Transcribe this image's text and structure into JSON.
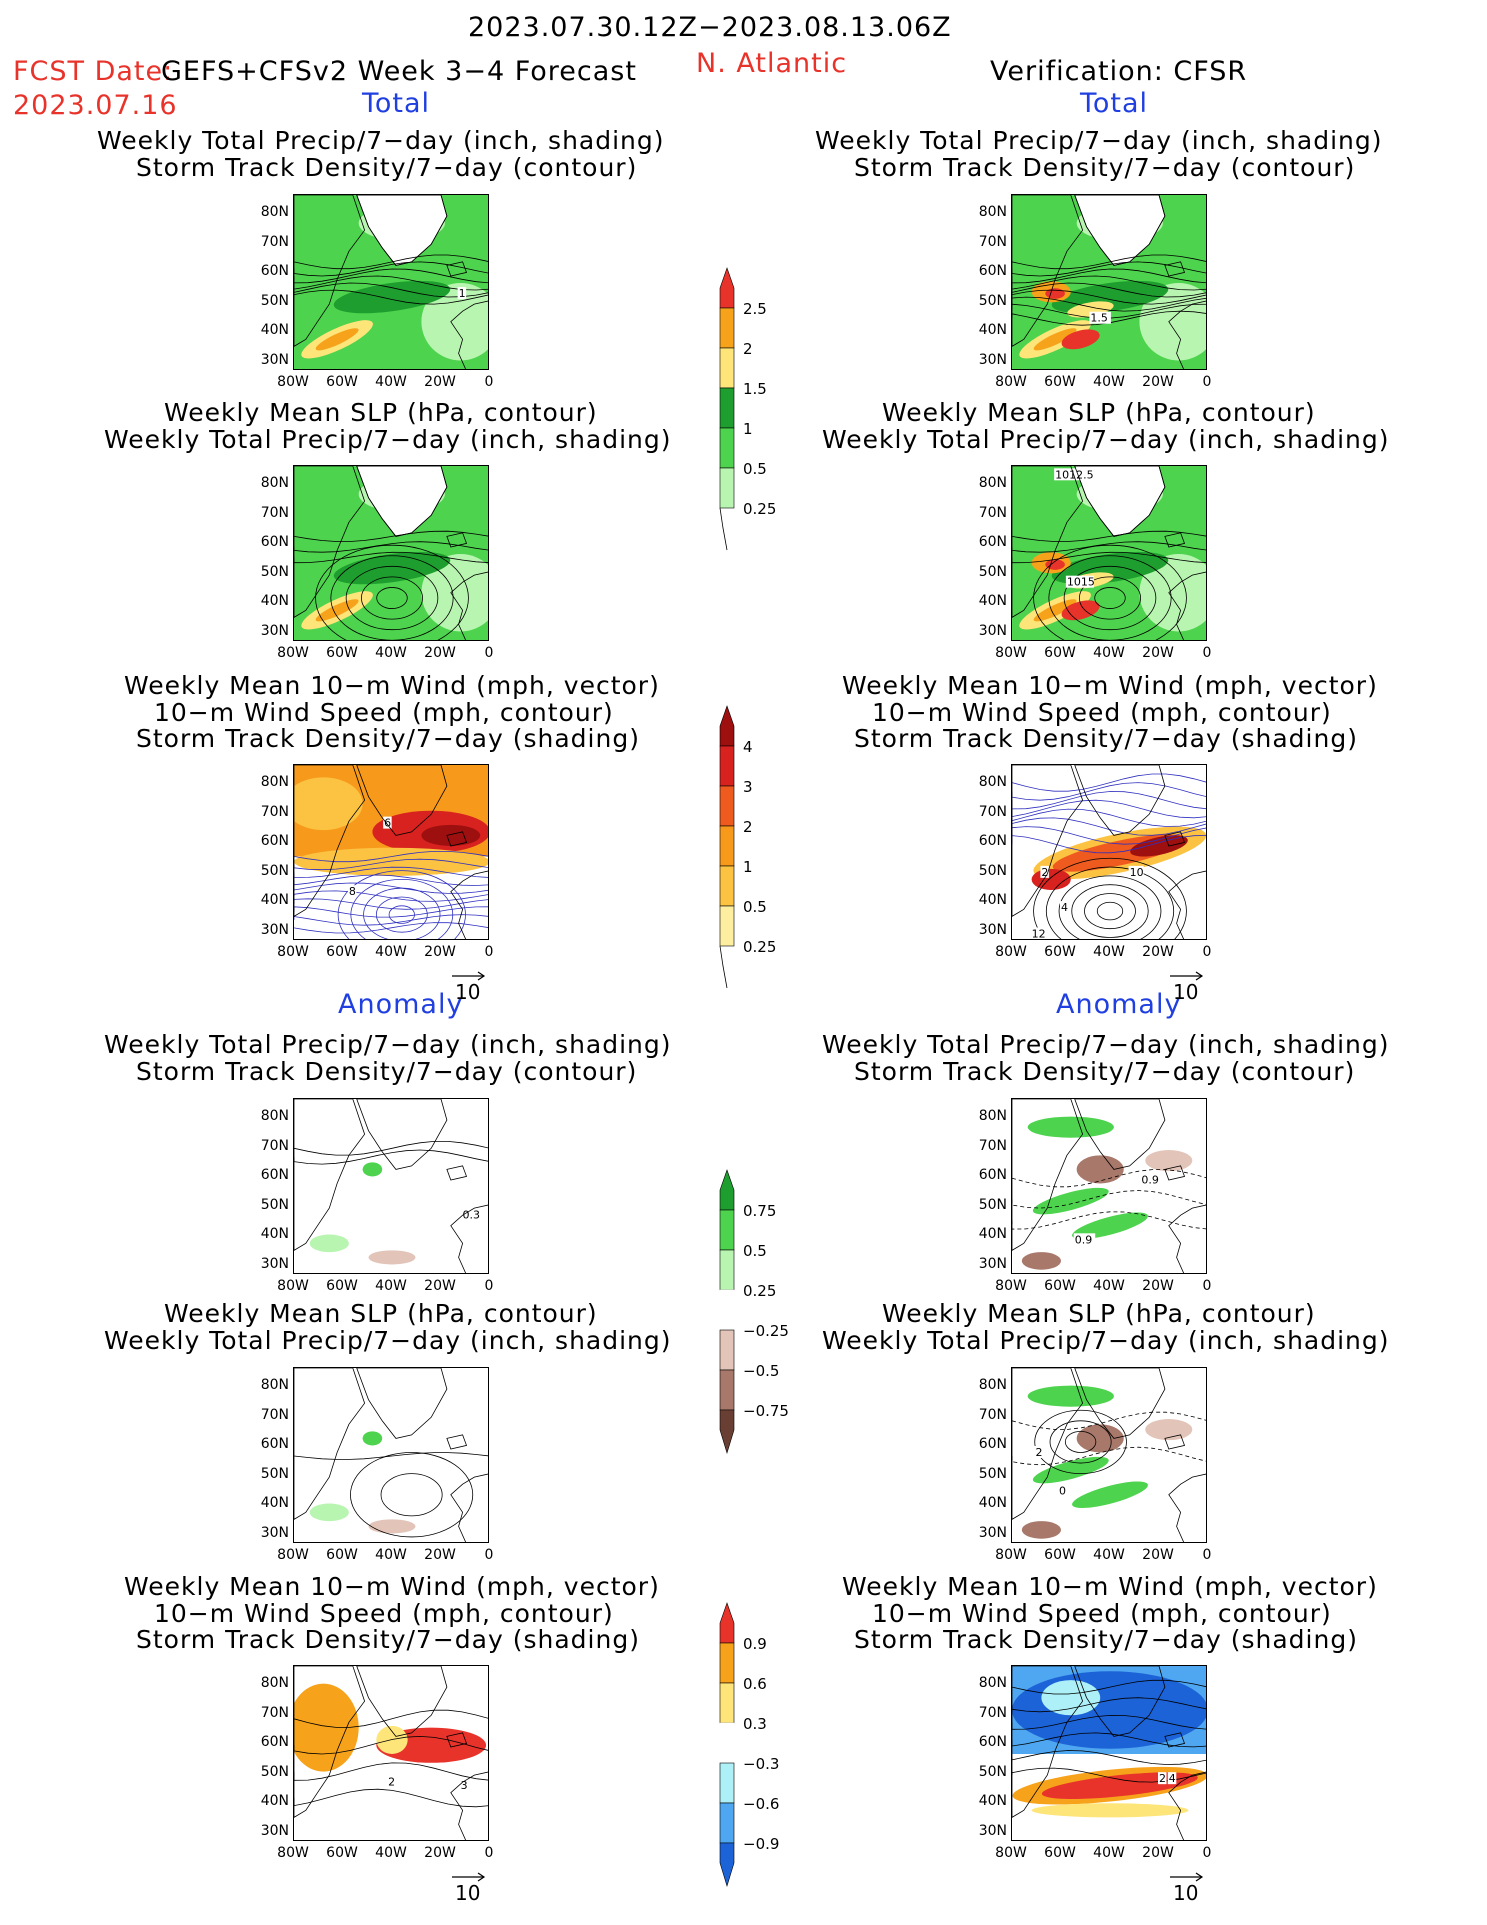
{
  "header": {
    "period": "2023.07.30.12Z−2023.08.13.06Z",
    "fcst_date_label": "FCST Date:",
    "fcst_date": "2023.07.16",
    "model": "GEFS+CFSv2 Week 3−4 Forecast",
    "region": "N. Atlantic",
    "verification": "Verification: CFSR"
  },
  "sections": {
    "total_left": "Total",
    "total_right": "Total",
    "anomaly_left": "Anomaly",
    "anomaly_right": "Anomaly"
  },
  "titles": {
    "precip_storm": [
      "Weekly Total Precip/7−day (inch, shading)",
      "Storm Track Density/7−day (contour)"
    ],
    "slp_precip": [
      "Weekly Mean SLP (hPa, contour)",
      "Weekly Total Precip/7−day (inch, shading)"
    ],
    "wind_storm": [
      "Weekly Mean 10−m Wind (mph, vector)",
      "10−m Wind Speed (mph, contour)",
      "Storm Track Density/7−day (shading)"
    ]
  },
  "axes": {
    "lat_ticks": [
      "80N",
      "70N",
      "60N",
      "50N",
      "40N",
      "30N"
    ],
    "lon_ticks": [
      "80W",
      "60W",
      "40W",
      "20W",
      "0"
    ]
  },
  "vector_ref": "10",
  "colorbars": {
    "precip_total": {
      "labels": [
        "2.5",
        "2",
        "1.5",
        "1",
        "0.5",
        "0.25"
      ],
      "colors": [
        "#e8332b",
        "#f7a21b",
        "#fde57a",
        "#1e9e2e",
        "#4dd34d",
        "#b8f5b0"
      ]
    },
    "storm_total": {
      "labels": [
        "4",
        "3",
        "2",
        "1",
        "0.5",
        "0.25"
      ],
      "colors": [
        "#9e0f0f",
        "#d8221f",
        "#ef5a1e",
        "#f7991b",
        "#fbc341",
        "#fdeea0"
      ]
    },
    "precip_anom": {
      "labels": [
        "0.75",
        "0.5",
        "0.25",
        "−0.25",
        "−0.5",
        "−0.75"
      ],
      "colors": [
        "#1e9e2e",
        "#4dd34d",
        "#b8f5b0",
        "#ffffff",
        "#e2c4b8",
        "#a8786a",
        "#6a3f33"
      ]
    },
    "storm_anom": {
      "labels": [
        "0.9",
        "0.6",
        "0.3",
        "−0.3",
        "−0.6",
        "−0.9"
      ],
      "colors": [
        "#e8332b",
        "#f7a21b",
        "#fde57a",
        "#ffffff",
        "#aef0f7",
        "#4ea7f0",
        "#1c63d8"
      ]
    }
  },
  "contour_labels": {
    "p1r": "1",
    "p2r": "1.5",
    "slp1r": "1012.5",
    "slp2r": "1015",
    "w1l": "6",
    "w2l": "8",
    "w1r": "2",
    "w2r": "4",
    "w3r": "10",
    "w4r": "12",
    "a1l": "0.3",
    "a1r": "0.9",
    "a2r": "0.9",
    "as1r": "2",
    "as2r": "0",
    "aw1l": "2",
    "aw2l": "3",
    "aw1r": "2",
    "aw2r": "4"
  }
}
